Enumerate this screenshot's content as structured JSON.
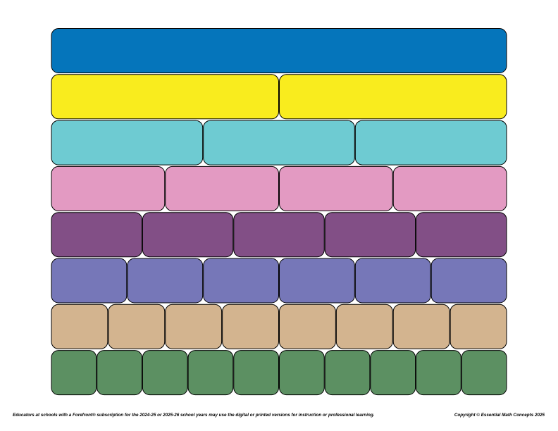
{
  "footer": {
    "notice": "Educators at schools with a Forefront® subscription for the 2024-25 or 2025-26 school years may use the digital or printed versions for instruction or professional learning.",
    "copyright": "Copyright © Essential Math Concepts 2025"
  }
}
